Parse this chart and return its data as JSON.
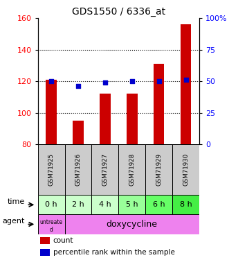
{
  "title": "GDS1550 / 6336_at",
  "samples": [
    "GSM71925",
    "GSM71926",
    "GSM71927",
    "GSM71928",
    "GSM71929",
    "GSM71930"
  ],
  "counts": [
    121,
    95,
    112,
    112,
    131,
    156
  ],
  "percentiles": [
    50,
    46,
    49,
    50,
    50,
    51
  ],
  "ylim_left": [
    80,
    160
  ],
  "ylim_right": [
    0,
    100
  ],
  "yticks_left": [
    80,
    100,
    120,
    140,
    160
  ],
  "yticks_right": [
    0,
    25,
    50,
    75,
    100
  ],
  "ytick_labels_right": [
    "0",
    "25",
    "50",
    "75",
    "100%"
  ],
  "bar_color": "#cc0000",
  "dot_color": "#0000cc",
  "bar_bottom": 80,
  "time_labels": [
    "0 h",
    "2 h",
    "4 h",
    "5 h",
    "6 h",
    "8 h"
  ],
  "time_colors": [
    "#ccffcc",
    "#ccffcc",
    "#ccffcc",
    "#99ff99",
    "#66ff66",
    "#44ee44"
  ],
  "sample_bg": "#cccccc",
  "agent_color": "#ee82ee",
  "legend_count_color": "#cc0000",
  "legend_pct_color": "#0000cc",
  "grid_dotted_at": [
    100,
    120,
    140
  ],
  "bar_width": 0.4
}
